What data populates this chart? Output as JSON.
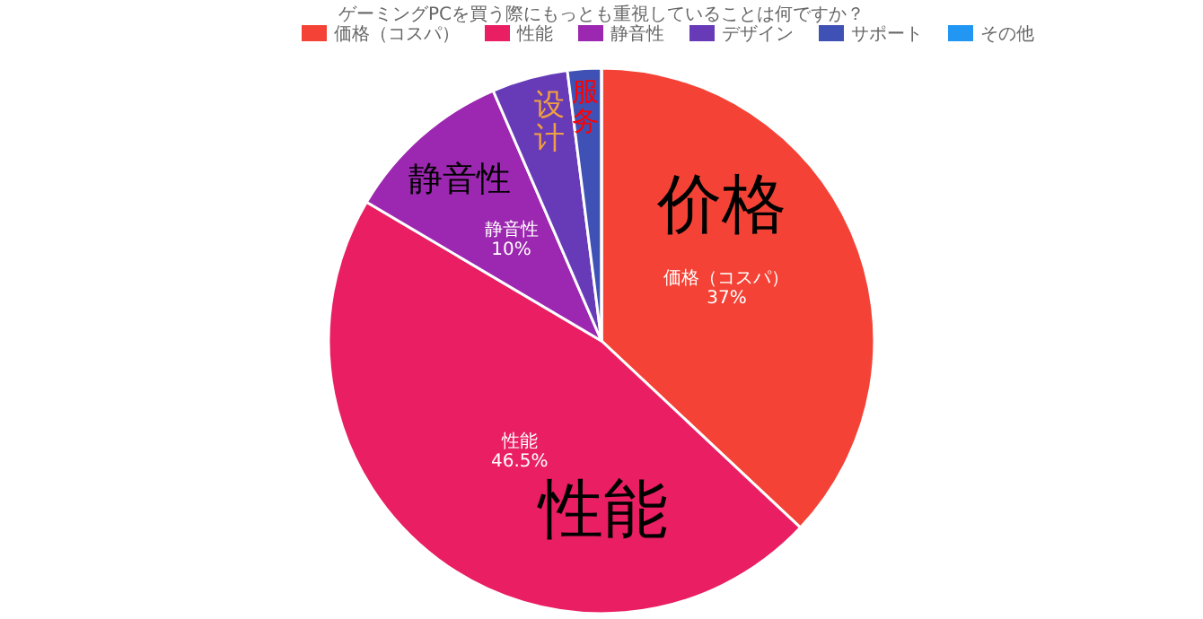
{
  "chart_data": {
    "type": "pie",
    "title": "ゲーミングPCを買う際にもっとも重視していることは何ですか？",
    "categories": [
      "価格（コスパ）",
      "性能",
      "静音性",
      "デザイン",
      "サポート",
      "その他"
    ],
    "values": [
      37,
      46.5,
      10,
      4.5,
      2,
      0
    ],
    "colors": [
      "#f44336",
      "#e91e63",
      "#9c27b0",
      "#673ab7",
      "#3f51b5",
      "#2196f3"
    ],
    "value_labels": [
      "37%",
      "46.5%",
      "10%",
      null,
      null,
      null
    ],
    "legend": "top",
    "annotations": [
      "价格",
      "性能",
      "静音性",
      "设计",
      "服务"
    ]
  }
}
